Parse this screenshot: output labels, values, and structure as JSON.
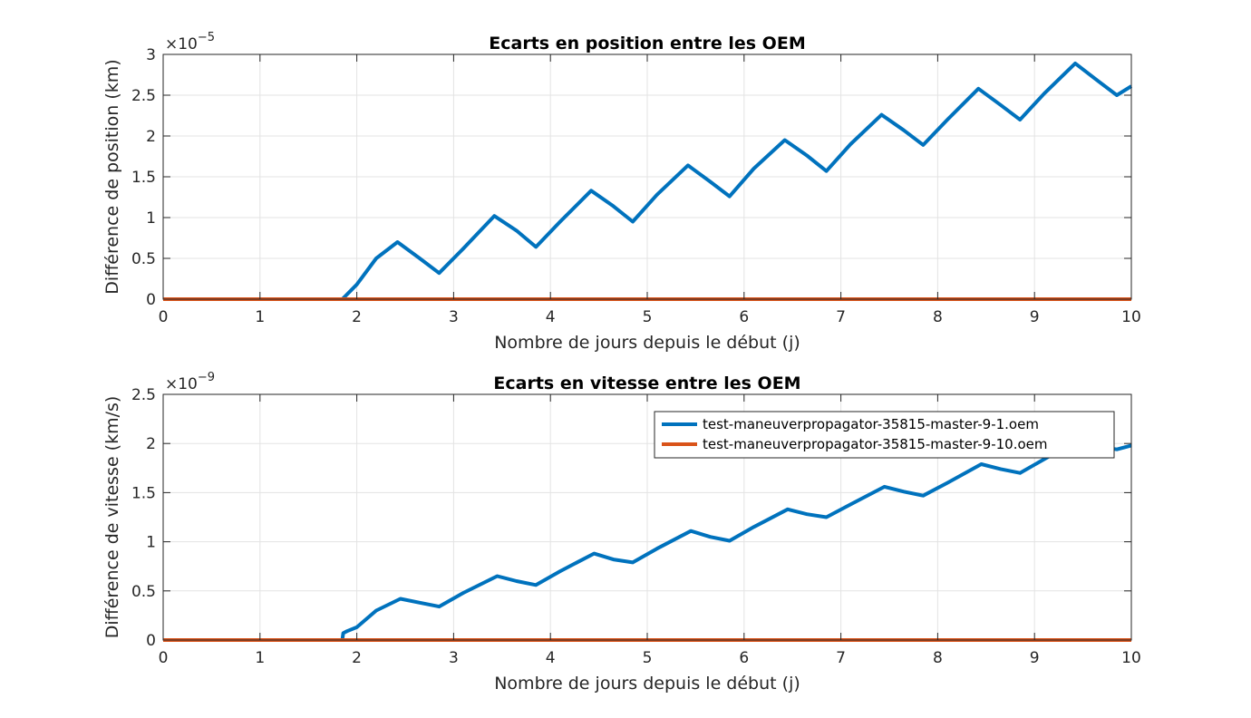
{
  "chart_data": [
    {
      "type": "line",
      "title": "Ecarts en position entre les OEM",
      "xlabel": "Nombre de jours depuis le début (j)",
      "ylabel": "Différence de position (km)",
      "y_exponent_base": "×10",
      "y_exponent_power": "−5",
      "xlim": [
        0,
        10
      ],
      "ylim": [
        0,
        3
      ],
      "xticks": [
        0,
        1,
        2,
        3,
        4,
        5,
        6,
        7,
        8,
        9,
        10
      ],
      "yticks": [
        0,
        0.5,
        1,
        1.5,
        2,
        2.5,
        3
      ],
      "xtick_labels": [
        "0",
        "1",
        "2",
        "3",
        "4",
        "5",
        "6",
        "7",
        "8",
        "9",
        "10"
      ],
      "ytick_labels": [
        "0",
        "0.5",
        "1",
        "1.5",
        "2",
        "2.5",
        "3"
      ],
      "grid": true,
      "legend": false,
      "series": [
        {
          "color": "#0072BD",
          "x": [
            0,
            1.85,
            2.0,
            2.2,
            2.42,
            2.65,
            2.85,
            3.1,
            3.42,
            3.65,
            3.85,
            4.1,
            4.42,
            4.65,
            4.85,
            5.1,
            5.42,
            5.65,
            5.85,
            6.1,
            6.42,
            6.65,
            6.85,
            7.1,
            7.42,
            7.65,
            7.85,
            8.1,
            8.42,
            8.65,
            8.85,
            9.1,
            9.42,
            9.65,
            9.85,
            10.0
          ],
          "y": [
            0,
            0,
            0.18,
            0.5,
            0.7,
            0.5,
            0.32,
            0.62,
            1.02,
            0.84,
            0.64,
            0.95,
            1.33,
            1.14,
            0.95,
            1.28,
            1.64,
            1.44,
            1.26,
            1.6,
            1.95,
            1.76,
            1.57,
            1.9,
            2.26,
            2.07,
            1.89,
            2.2,
            2.58,
            2.38,
            2.2,
            2.52,
            2.89,
            2.68,
            2.5,
            2.61
          ]
        },
        {
          "color": "#D95319",
          "x": [
            0,
            10
          ],
          "y": [
            0,
            0
          ]
        }
      ]
    },
    {
      "type": "line",
      "title": "Ecarts en vitesse entre les OEM",
      "xlabel": "Nombre de jours depuis le début (j)",
      "ylabel": "Différence de vitesse (km/s)",
      "y_exponent_base": "×10",
      "y_exponent_power": "−9",
      "xlim": [
        0,
        10
      ],
      "ylim": [
        0,
        2.5
      ],
      "xticks": [
        0,
        1,
        2,
        3,
        4,
        5,
        6,
        7,
        8,
        9,
        10
      ],
      "yticks": [
        0,
        0.5,
        1,
        1.5,
        2,
        2.5
      ],
      "xtick_labels": [
        "0",
        "1",
        "2",
        "3",
        "4",
        "5",
        "6",
        "7",
        "8",
        "9",
        "10"
      ],
      "ytick_labels": [
        "0",
        "0.5",
        "1",
        "1.5",
        "2",
        "2.5"
      ],
      "grid": true,
      "legend": true,
      "legend_position": "top-right",
      "series": [
        {
          "name": "test-maneuverpropagator-35815-master-9-1.oem",
          "color": "#0072BD",
          "x": [
            0,
            1.85,
            1.86,
            1.9,
            2.0,
            2.2,
            2.45,
            2.65,
            2.85,
            3.1,
            3.45,
            3.65,
            3.85,
            4.1,
            4.45,
            4.65,
            4.85,
            5.1,
            5.45,
            5.65,
            5.85,
            6.1,
            6.45,
            6.65,
            6.85,
            7.1,
            7.45,
            7.65,
            7.85,
            8.1,
            8.45,
            8.65,
            8.85,
            9.1,
            9.4,
            9.65,
            9.85,
            10.0
          ],
          "y": [
            0,
            0,
            0.07,
            0.09,
            0.13,
            0.3,
            0.42,
            0.38,
            0.34,
            0.48,
            0.65,
            0.6,
            0.56,
            0.7,
            0.88,
            0.82,
            0.79,
            0.93,
            1.11,
            1.05,
            1.01,
            1.15,
            1.33,
            1.28,
            1.25,
            1.38,
            1.56,
            1.51,
            1.47,
            1.6,
            1.79,
            1.74,
            1.7,
            1.84,
            2.01,
            1.97,
            1.94,
            1.98
          ]
        },
        {
          "name": "test-maneuverpropagator-35815-master-9-10.oem",
          "color": "#D95319",
          "x": [
            0,
            10
          ],
          "y": [
            0,
            0
          ]
        }
      ]
    }
  ]
}
